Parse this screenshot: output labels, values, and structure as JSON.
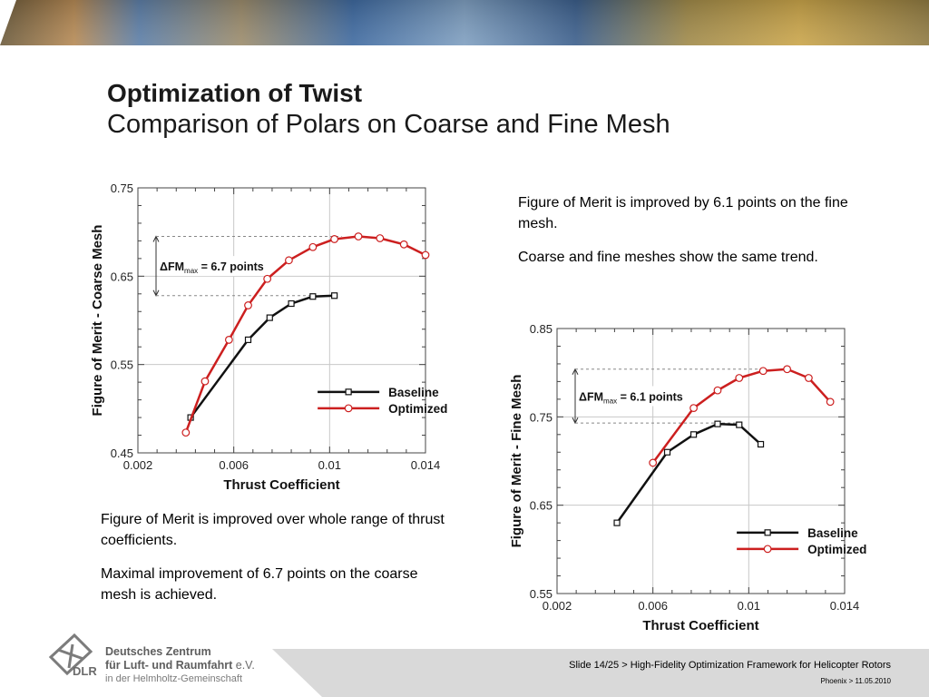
{
  "slide": {
    "title": "Optimization of Twist",
    "subtitle": "Comparison of Polars on Coarse and Fine Mesh"
  },
  "text_right": {
    "p1": "Figure of Merit is improved by 6.1 points on the fine mesh.",
    "p2": "Coarse and fine meshes show the same trend."
  },
  "text_left": {
    "p1": "Figure of Merit is improved over whole range of thrust coefficients.",
    "p2": "Maximal improvement of 6.7 points on the coarse mesh is achieved."
  },
  "footer": {
    "slide_info": "Slide 14/25 > High-Fidelity Optimization Framework for Helicopter Rotors",
    "date_info": "Phoenix > 11.05.2010",
    "org_line1": "Deutsches Zentrum",
    "org_line2a": "für Luft- und Raumfahrt",
    "org_line2b": " e.V.",
    "org_line3": "in der Helmholtz-Gemeinschaft",
    "logo_text": "DLR"
  },
  "colors": {
    "baseline": "#111111",
    "optimized": "#cc1f1f",
    "footer_gray": "#d9d9d9"
  },
  "chart_data": [
    {
      "type": "line",
      "title": "",
      "xlabel": "Thrust Coefficient",
      "ylabel": "Figure of Merit - Coarse Mesh",
      "xlim": [
        0.002,
        0.014
      ],
      "ylim": [
        0.45,
        0.75
      ],
      "xticks": [
        "0.002",
        "0.006",
        "0.01",
        "0.014"
      ],
      "yticks": [
        "0.45",
        "0.55",
        "0.65",
        "0.75"
      ],
      "grid": true,
      "legend_position": "bottom-right",
      "annotation": {
        "label": "ΔFM",
        "sub": "max",
        "value": " = 6.7 points",
        "y_top": 0.695,
        "y_bottom": 0.628
      },
      "series": [
        {
          "name": "Baseline",
          "color": "#111111",
          "marker": "square",
          "x": [
            0.0042,
            0.0066,
            0.0075,
            0.0084,
            0.0093,
            0.0102
          ],
          "y": [
            0.49,
            0.578,
            0.603,
            0.619,
            0.627,
            0.628
          ]
        },
        {
          "name": "Optimized",
          "color": "#cc1f1f",
          "marker": "circle",
          "x": [
            0.004,
            0.0048,
            0.0058,
            0.0066,
            0.0074,
            0.0083,
            0.0093,
            0.0102,
            0.0112,
            0.0121,
            0.0131,
            0.014
          ],
          "y": [
            0.473,
            0.531,
            0.578,
            0.617,
            0.647,
            0.668,
            0.683,
            0.692,
            0.695,
            0.693,
            0.686,
            0.674
          ]
        }
      ]
    },
    {
      "type": "line",
      "title": "",
      "xlabel": "Thrust Coefficient",
      "ylabel": "Figure of Merit - Fine Mesh",
      "xlim": [
        0.002,
        0.014
      ],
      "ylim": [
        0.55,
        0.85
      ],
      "xticks": [
        "0.002",
        "0.006",
        "0.01",
        "0.014"
      ],
      "yticks": [
        "0.55",
        "0.65",
        "0.75",
        "0.85"
      ],
      "grid": true,
      "legend_position": "bottom-right",
      "annotation": {
        "label": "ΔFM",
        "sub": "max",
        "value": " = 6.1 points",
        "y_top": 0.804,
        "y_bottom": 0.743
      },
      "series": [
        {
          "name": "Baseline",
          "color": "#111111",
          "marker": "square",
          "x": [
            0.0045,
            0.0066,
            0.0077,
            0.0087,
            0.0096,
            0.0105
          ],
          "y": [
            0.63,
            0.71,
            0.73,
            0.742,
            0.741,
            0.719
          ]
        },
        {
          "name": "Optimized",
          "color": "#cc1f1f",
          "marker": "circle",
          "x": [
            0.006,
            0.0077,
            0.0087,
            0.0096,
            0.0106,
            0.0116,
            0.0125,
            0.0134
          ],
          "y": [
            0.698,
            0.76,
            0.78,
            0.794,
            0.802,
            0.804,
            0.794,
            0.767
          ]
        }
      ]
    }
  ]
}
